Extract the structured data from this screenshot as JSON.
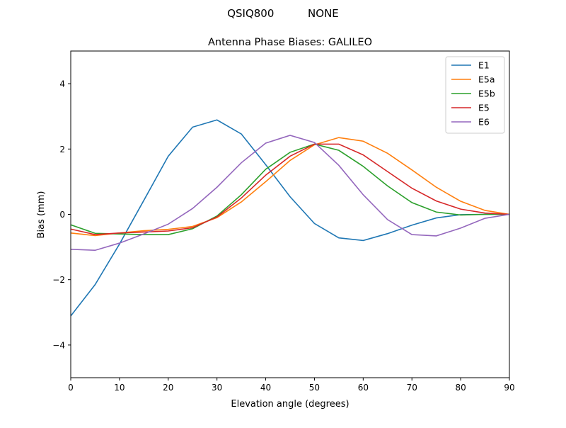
{
  "chart_data": {
    "type": "line",
    "suptitle": "QSIQ800          NONE",
    "title": "Antenna Phase Biases: GALILEO",
    "xlabel": "Elevation angle (degrees)",
    "ylabel": "Bias (mm)",
    "xlim": [
      0,
      90
    ],
    "ylim": [
      -5,
      5
    ],
    "xticks": [
      0,
      10,
      20,
      30,
      40,
      50,
      60,
      70,
      80,
      90
    ],
    "yticks": [
      -4,
      -2,
      0,
      2,
      4
    ],
    "ytick_labels": [
      "−4",
      "−2",
      "0",
      "2",
      "4"
    ],
    "grid": false,
    "legend_position": "top-right",
    "x": [
      0,
      5,
      10,
      15,
      20,
      25,
      30,
      35,
      40,
      45,
      50,
      55,
      60,
      65,
      70,
      75,
      80,
      85,
      90
    ],
    "series": [
      {
        "name": "E1",
        "color": "#1f77b4",
        "values": [
          -3.11,
          -2.15,
          -0.91,
          0.43,
          1.78,
          2.67,
          2.89,
          2.46,
          1.52,
          0.54,
          -0.28,
          -0.72,
          -0.8,
          -0.59,
          -0.33,
          -0.11,
          -0.01,
          0,
          0
        ]
      },
      {
        "name": "E5a",
        "color": "#ff7f0e",
        "values": [
          -0.57,
          -0.65,
          -0.57,
          -0.5,
          -0.46,
          -0.37,
          -0.1,
          0.38,
          1.0,
          1.65,
          2.13,
          2.35,
          2.24,
          1.87,
          1.36,
          0.83,
          0.4,
          0.12,
          0
        ]
      },
      {
        "name": "E5b",
        "color": "#2ca02c",
        "values": [
          -0.32,
          -0.58,
          -0.6,
          -0.62,
          -0.62,
          -0.44,
          -0.05,
          0.6,
          1.38,
          1.9,
          2.15,
          1.96,
          1.47,
          0.87,
          0.36,
          0.07,
          -0.02,
          0,
          0
        ]
      },
      {
        "name": "E5",
        "color": "#d62728",
        "values": [
          -0.45,
          -0.62,
          -0.57,
          -0.54,
          -0.51,
          -0.41,
          -0.08,
          0.5,
          1.2,
          1.78,
          2.15,
          2.15,
          1.82,
          1.31,
          0.8,
          0.41,
          0.16,
          0.04,
          0
        ]
      },
      {
        "name": "E6",
        "color": "#9467bd",
        "values": [
          -1.07,
          -1.1,
          -0.88,
          -0.6,
          -0.3,
          0.18,
          0.83,
          1.58,
          2.18,
          2.42,
          2.2,
          1.5,
          0.6,
          -0.16,
          -0.62,
          -0.66,
          -0.42,
          -0.12,
          0
        ]
      }
    ]
  }
}
